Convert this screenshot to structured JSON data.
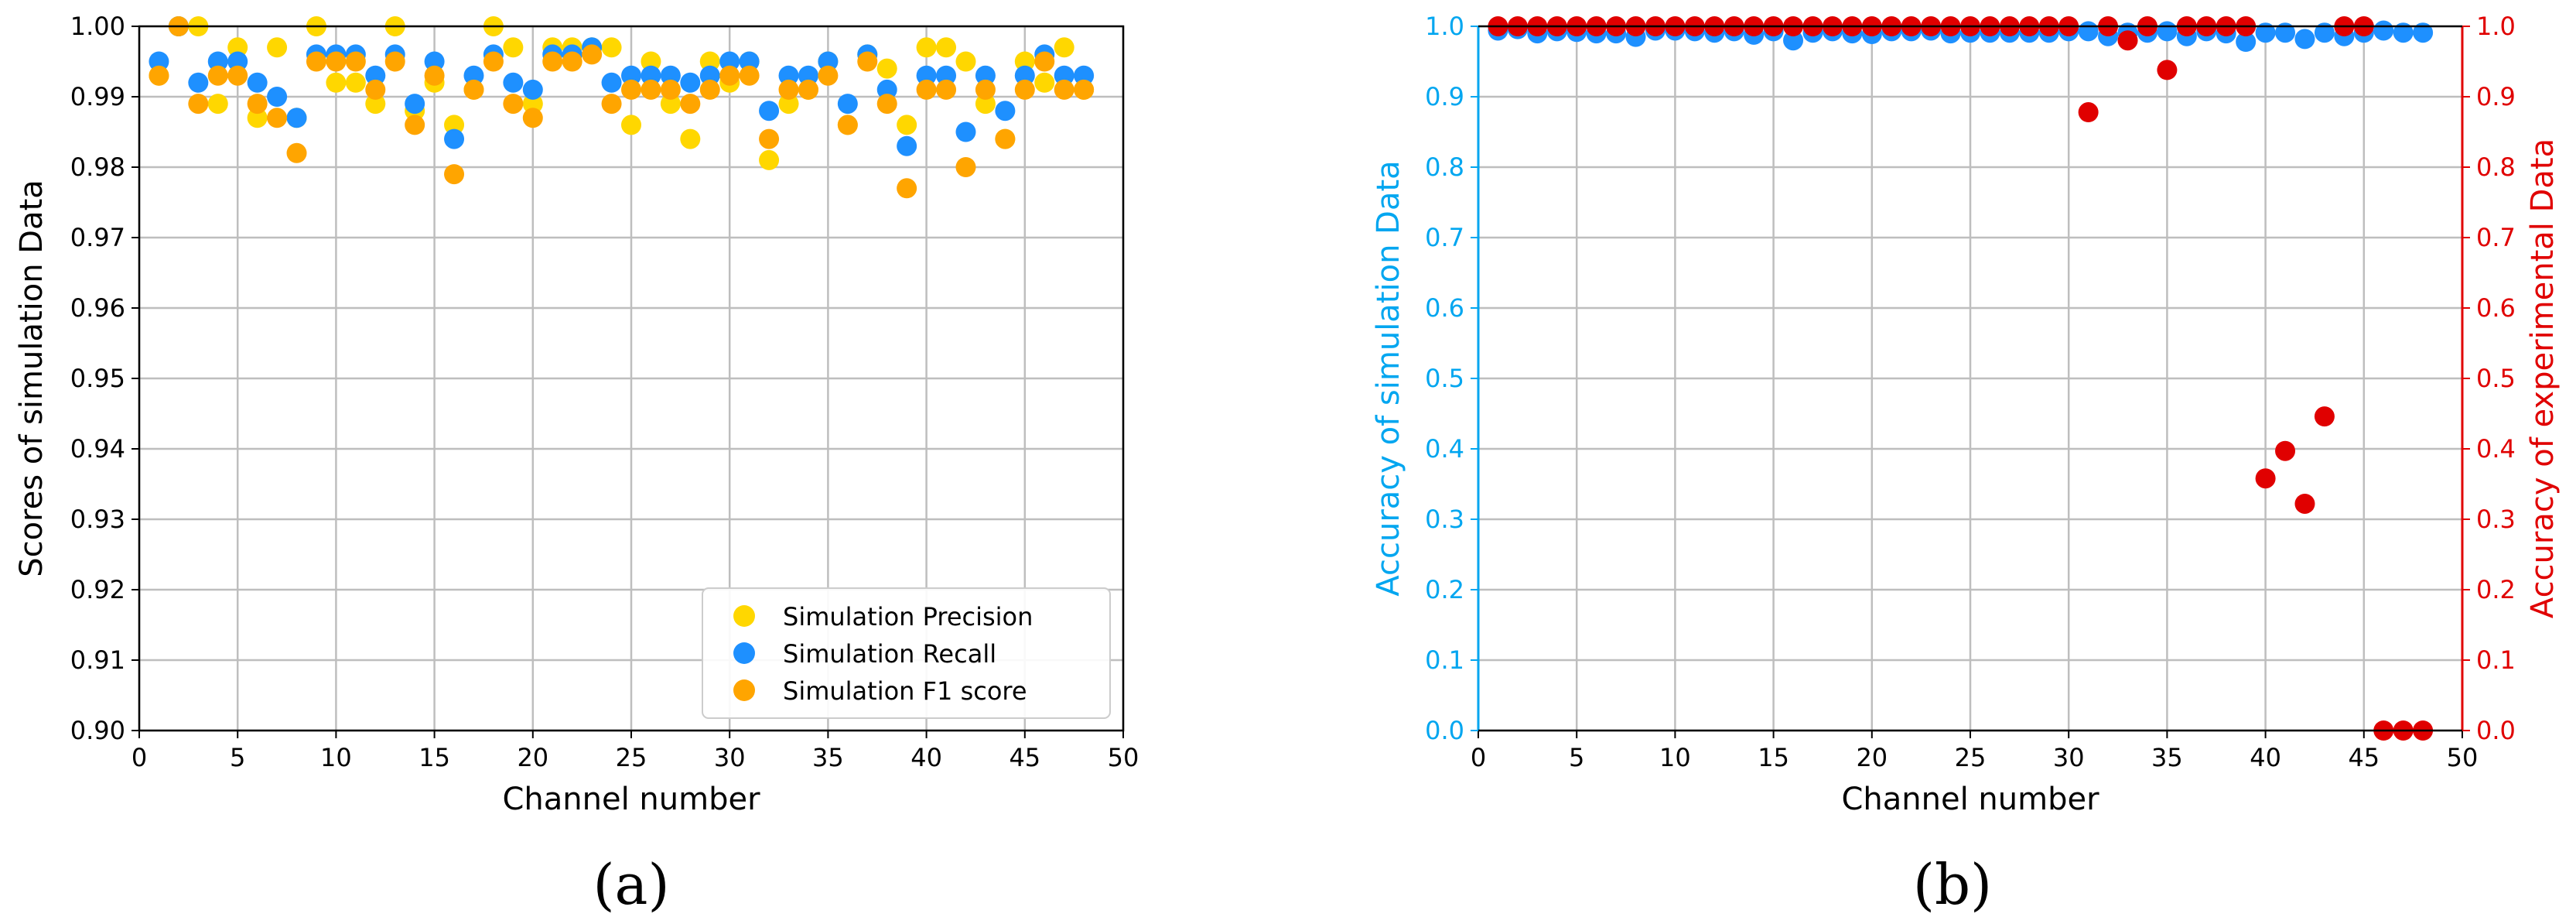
{
  "colors": {
    "precision": "#FFD700",
    "recall": "#1E90FF",
    "f1": "#FFA500",
    "sim_accuracy": "#1E90FF",
    "exp_accuracy": "#E00000",
    "sim_axis": "#00A6F0",
    "exp_axis": "#E00000",
    "grid": "#BEBEBE",
    "axis": "#000000"
  },
  "panel_labels": {
    "a": "(a)",
    "b": "(b)"
  },
  "chart_data": [
    {
      "type": "scatter",
      "title": "",
      "xlabel": "Channel number",
      "ylabel": "Scores of simulation Data",
      "xlim": [
        0,
        50
      ],
      "ylim": [
        0.9,
        1.0
      ],
      "xticks": [
        "0",
        "5",
        "10",
        "15",
        "20",
        "25",
        "30",
        "35",
        "40",
        "45",
        "50"
      ],
      "yticks": [
        "0.90",
        "0.91",
        "0.92",
        "0.93",
        "0.94",
        "0.95",
        "0.96",
        "0.97",
        "0.98",
        "0.99",
        "1.00"
      ],
      "grid": true,
      "legend_position": "bottom-right",
      "x": [
        1,
        2,
        3,
        4,
        5,
        6,
        7,
        8,
        9,
        10,
        11,
        12,
        13,
        14,
        15,
        16,
        17,
        18,
        19,
        20,
        21,
        22,
        23,
        24,
        25,
        26,
        27,
        28,
        29,
        30,
        31,
        32,
        33,
        34,
        35,
        36,
        37,
        38,
        39,
        40,
        41,
        42,
        43,
        44,
        45,
        46,
        47,
        48
      ],
      "series": [
        {
          "name": "Simulation Precision",
          "color_key": "precision",
          "values": [
            0.993,
            1.0,
            1.0,
            0.989,
            0.997,
            0.987,
            0.997,
            0.987,
            1.0,
            0.992,
            0.992,
            0.989,
            1.0,
            0.988,
            0.992,
            0.986,
            0.991,
            1.0,
            0.997,
            0.989,
            0.997,
            0.997,
            0.997,
            0.997,
            0.986,
            0.995,
            0.989,
            0.984,
            0.995,
            0.992,
            0.995,
            0.981,
            0.989,
            0.991,
            0.995,
            0.986,
            0.996,
            0.994,
            0.986,
            0.997,
            0.997,
            0.995,
            0.989,
            0.984,
            0.995,
            0.992,
            0.997,
            0.991
          ]
        },
        {
          "name": "Simulation Recall",
          "color_key": "recall",
          "values": [
            0.995,
            1.0,
            0.992,
            0.995,
            0.995,
            0.992,
            0.99,
            0.987,
            0.996,
            0.996,
            0.996,
            0.993,
            0.996,
            0.989,
            0.995,
            0.984,
            0.993,
            0.996,
            0.992,
            0.991,
            0.996,
            0.996,
            0.997,
            0.992,
            0.993,
            0.993,
            0.993,
            0.992,
            0.993,
            0.995,
            0.995,
            0.988,
            0.993,
            0.993,
            0.995,
            0.989,
            0.996,
            0.991,
            0.983,
            0.993,
            0.993,
            0.985,
            0.993,
            0.988,
            0.993,
            0.996,
            0.993,
            0.993
          ]
        },
        {
          "name": "Simulation F1 score",
          "color_key": "f1",
          "values": [
            0.993,
            1.0,
            0.989,
            0.993,
            0.993,
            0.989,
            0.987,
            0.982,
            0.995,
            0.995,
            0.995,
            0.991,
            0.995,
            0.986,
            0.993,
            0.979,
            0.991,
            0.995,
            0.989,
            0.987,
            0.995,
            0.995,
            0.996,
            0.989,
            0.991,
            0.991,
            0.991,
            0.989,
            0.991,
            0.993,
            0.993,
            0.984,
            0.991,
            0.991,
            0.993,
            0.986,
            0.995,
            0.989,
            0.977,
            0.991,
            0.991,
            0.98,
            0.991,
            0.984,
            0.991,
            0.995,
            0.991,
            0.991
          ]
        }
      ]
    },
    {
      "type": "scatter",
      "title": "",
      "xlabel": "Channel number",
      "ylabel": "Accuracy of simulation Data",
      "ylabel_right": "Accuracy of experimental Data",
      "xlim": [
        0,
        50
      ],
      "ylim": [
        0.0,
        1.0
      ],
      "ylim_right": [
        0.0,
        1.0
      ],
      "xticks": [
        "0",
        "5",
        "10",
        "15",
        "20",
        "25",
        "30",
        "35",
        "40",
        "45",
        "50"
      ],
      "yticks": [
        "0.0",
        "0.1",
        "0.2",
        "0.3",
        "0.4",
        "0.5",
        "0.6",
        "0.7",
        "0.8",
        "0.9",
        "1.0"
      ],
      "yticks_right": [
        "0.0",
        "0.1",
        "0.2",
        "0.3",
        "0.4",
        "0.5",
        "0.6",
        "0.7",
        "0.8",
        "0.9",
        "1.0"
      ],
      "grid": true,
      "x": [
        1,
        2,
        3,
        4,
        5,
        6,
        7,
        8,
        9,
        10,
        11,
        12,
        13,
        14,
        15,
        16,
        17,
        18,
        19,
        20,
        21,
        22,
        23,
        24,
        25,
        26,
        27,
        28,
        29,
        30,
        31,
        32,
        33,
        34,
        35,
        36,
        37,
        38,
        39,
        40,
        41,
        42,
        43,
        44,
        45,
        46,
        47,
        48
      ],
      "series": [
        {
          "name": "Accuracy of simulation Data",
          "axis": "left",
          "color_key": "sim_accuracy",
          "values": [
            0.994,
            0.996,
            0.99,
            0.993,
            0.992,
            0.99,
            0.99,
            0.985,
            0.994,
            0.994,
            0.993,
            0.991,
            0.993,
            0.988,
            0.993,
            0.98,
            0.991,
            0.993,
            0.99,
            0.989,
            0.993,
            0.993,
            0.994,
            0.99,
            0.991,
            0.991,
            0.991,
            0.991,
            0.991,
            0.993,
            0.993,
            0.986,
            0.991,
            0.991,
            0.993,
            0.986,
            0.993,
            0.99,
            0.978,
            0.991,
            0.991,
            0.982,
            0.991,
            0.986,
            0.991,
            0.994,
            0.991,
            0.991
          ]
        },
        {
          "name": "Accuracy of experimental Data",
          "axis": "right",
          "color_key": "exp_accuracy",
          "values": [
            1.0,
            1.0,
            1.0,
            1.0,
            1.0,
            1.0,
            1.0,
            1.0,
            1.0,
            1.0,
            1.0,
            1.0,
            1.0,
            1.0,
            1.0,
            1.0,
            1.0,
            1.0,
            1.0,
            1.0,
            1.0,
            1.0,
            1.0,
            1.0,
            1.0,
            1.0,
            1.0,
            1.0,
            1.0,
            1.0,
            0.878,
            1.0,
            0.98,
            1.0,
            0.938,
            1.0,
            1.0,
            1.0,
            1.0,
            0.358,
            0.397,
            0.322,
            0.446,
            1.0,
            1.0,
            0.0,
            0.0,
            0.0
          ]
        }
      ]
    }
  ]
}
